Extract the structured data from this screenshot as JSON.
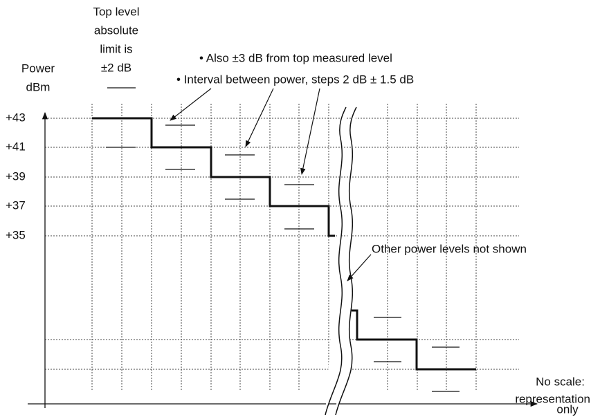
{
  "top_note": [
    "Top level",
    "absolute",
    "limit is",
    "±2 dB"
  ],
  "y_axis": {
    "title": [
      "Power",
      "dBm"
    ],
    "labels": [
      "+43",
      "+41",
      "+39",
      "+37",
      "+35"
    ]
  },
  "callouts": [
    "• Also ±3 dB from top measured level",
    "• Interval between power, steps 2 dB ± 1.5 dB"
  ],
  "break_note": "Other power levels not shown",
  "scale_note": [
    "No scale:",
    "representation",
    "only"
  ]
}
